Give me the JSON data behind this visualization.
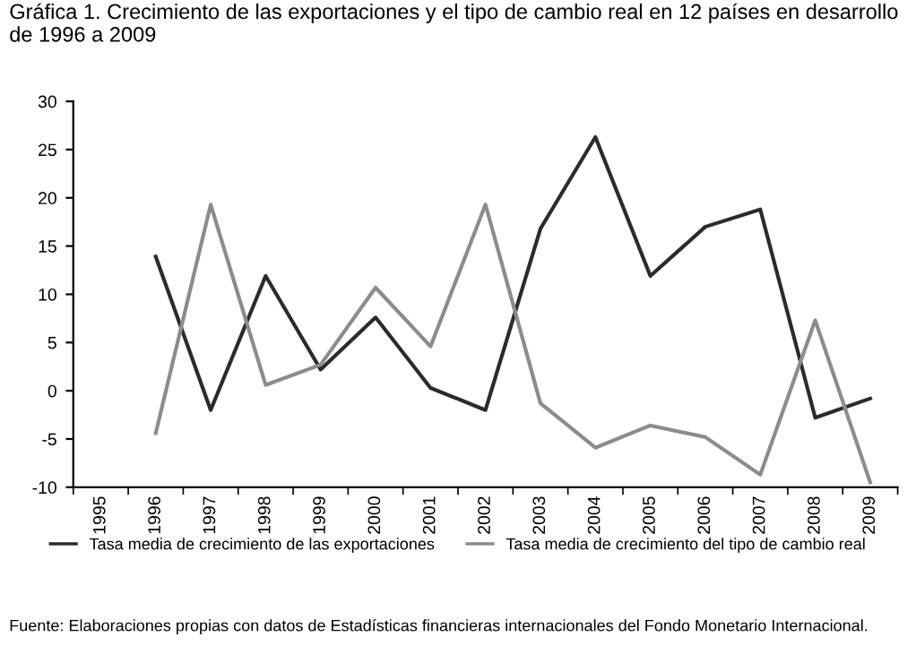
{
  "chart_data": {
    "type": "line",
    "title": "Gráfica 1. Crecimiento de las exportaciones y el tipo de cambio real en 12 países en desarrollo\nde 1996 a 2009",
    "categories": [
      "1995",
      "1996",
      "1997",
      "1998",
      "1999",
      "2000",
      "2001",
      "2002",
      "2003",
      "2004",
      "2005",
      "2006",
      "2007",
      "2008",
      "2009"
    ],
    "series": [
      {
        "name": "Tasa media de crecimiento de las exportaciones",
        "color": "#2b2b2b",
        "values": [
          null,
          13.9,
          -2.0,
          11.9,
          2.2,
          7.6,
          0.3,
          -2.0,
          16.8,
          26.3,
          11.9,
          17.0,
          18.8,
          -2.8,
          -0.8
        ]
      },
      {
        "name": "Tasa media de crecimiento del tipo de cambio real",
        "color": "#8c8c8c",
        "values": [
          null,
          -4.4,
          19.3,
          0.6,
          2.7,
          10.7,
          4.6,
          19.3,
          -1.3,
          -5.9,
          -3.6,
          -4.8,
          -8.7,
          7.3,
          -9.5
        ]
      }
    ],
    "ylim": [
      -10,
      30
    ],
    "yticks": [
      -10,
      -5,
      0,
      5,
      10,
      15,
      20,
      25,
      30
    ],
    "grid": false,
    "legend": "bottom",
    "marker": "none",
    "line_style": "solid",
    "annotations": [
      "Fuente: Elaboraciones propias con datos de Estadísticas financieras internacionales del Fondo Monetario Internacional."
    ]
  }
}
